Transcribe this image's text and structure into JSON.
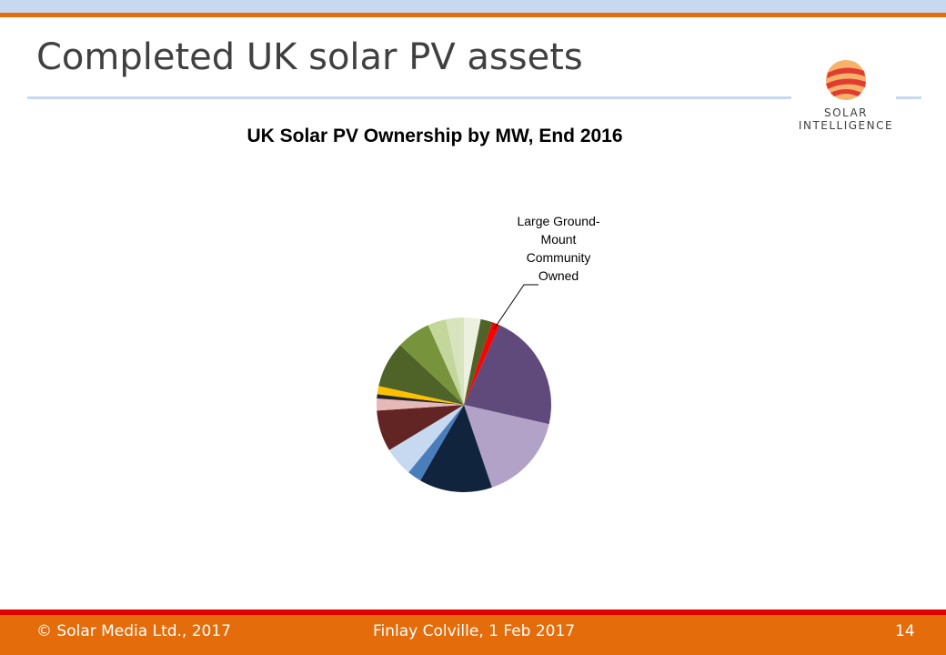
{
  "slide": {
    "title": "Completed UK solar PV assets",
    "logo": [
      "SOLAR",
      "INTELLIGENCE"
    ]
  },
  "footer": {
    "left": "© Solar Media Ltd., 2017",
    "center": "Finlay Colville, 1 Feb 2017",
    "page": "14"
  },
  "chart_data": {
    "type": "pie",
    "title": "UK Solar PV Ownership by MW, End 2016",
    "categories": [
      null,
      null,
      "Large Ground-Mount Community Owned",
      null,
      null,
      null,
      null,
      null,
      null,
      null,
      null,
      null,
      null,
      null,
      null,
      null
    ],
    "values": [
      3.1,
      2.2,
      1.4,
      21.8,
      16.2,
      13.5,
      2.6,
      5.4,
      7.6,
      2.2,
      0.8,
      1.5,
      8.5,
      6.3,
      3.4,
      3.3
    ],
    "colors": [
      "#ebf1de",
      "#4f6228",
      "#ff0000",
      "#604a7b",
      "#b3a2c7",
      "#10243e",
      "#4a7ebb",
      "#c6d9f1",
      "#632523",
      "#e6b9b8",
      "#262626",
      "#ffc000",
      "#4f6228",
      "#77933c",
      "#c3d69b",
      "#d7e4bd"
    ]
  }
}
